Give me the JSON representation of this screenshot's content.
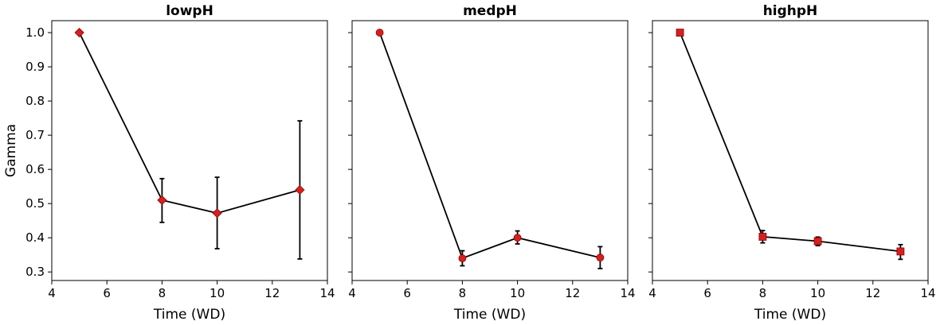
{
  "chart_data": [
    {
      "type": "line",
      "title": "lowpH",
      "xlabel": "Time (WD)",
      "ylabel": "Gamma",
      "marker": "diamond",
      "x": [
        5,
        8,
        10,
        13
      ],
      "y": [
        1.0,
        0.51,
        0.472,
        0.54
      ],
      "yerr_low": [
        1.0,
        0.445,
        0.368,
        0.338
      ],
      "yerr_high": [
        1.0,
        0.573,
        0.577,
        0.742
      ],
      "xlim": [
        4,
        14
      ],
      "ylim": [
        0.275,
        1.035
      ],
      "xticks": [
        "4",
        "6",
        "8",
        "10",
        "12",
        "14"
      ],
      "yticks": [
        "0.3",
        "0.4",
        "0.5",
        "0.6",
        "0.7",
        "0.8",
        "0.9",
        "1.0"
      ],
      "show_y_tick_labels": true
    },
    {
      "type": "line",
      "title": "medpH",
      "xlabel": "Time (WD)",
      "ylabel": "",
      "marker": "circle",
      "x": [
        5,
        8,
        10,
        13
      ],
      "y": [
        1.0,
        0.34,
        0.4,
        0.342
      ],
      "yerr_low": [
        1.0,
        0.318,
        0.382,
        0.31
      ],
      "yerr_high": [
        1.0,
        0.362,
        0.42,
        0.374
      ],
      "xlim": [
        4,
        14
      ],
      "ylim": [
        0.275,
        1.035
      ],
      "xticks": [
        "4",
        "6",
        "8",
        "10",
        "12",
        "14"
      ],
      "yticks": [
        "0.3",
        "0.4",
        "0.5",
        "0.6",
        "0.7",
        "0.8",
        "0.9",
        "1.0"
      ],
      "show_y_tick_labels": false
    },
    {
      "type": "line",
      "title": "highpH",
      "xlabel": "Time (WD)",
      "ylabel": "",
      "marker": "square",
      "x": [
        5,
        8,
        10,
        13
      ],
      "y": [
        1.0,
        0.403,
        0.39,
        0.36
      ],
      "yerr_low": [
        1.0,
        0.385,
        0.377,
        0.337
      ],
      "yerr_high": [
        1.0,
        0.421,
        0.402,
        0.38
      ],
      "xlim": [
        4,
        14
      ],
      "ylim": [
        0.275,
        1.035
      ],
      "xticks": [
        "4",
        "6",
        "8",
        "10",
        "12",
        "14"
      ],
      "yticks": [
        "0.3",
        "0.4",
        "0.5",
        "0.6",
        "0.7",
        "0.8",
        "0.9",
        "1.0"
      ],
      "show_y_tick_labels": false
    }
  ],
  "colors": {
    "marker_fill": "#d62020",
    "line": "#000000"
  }
}
